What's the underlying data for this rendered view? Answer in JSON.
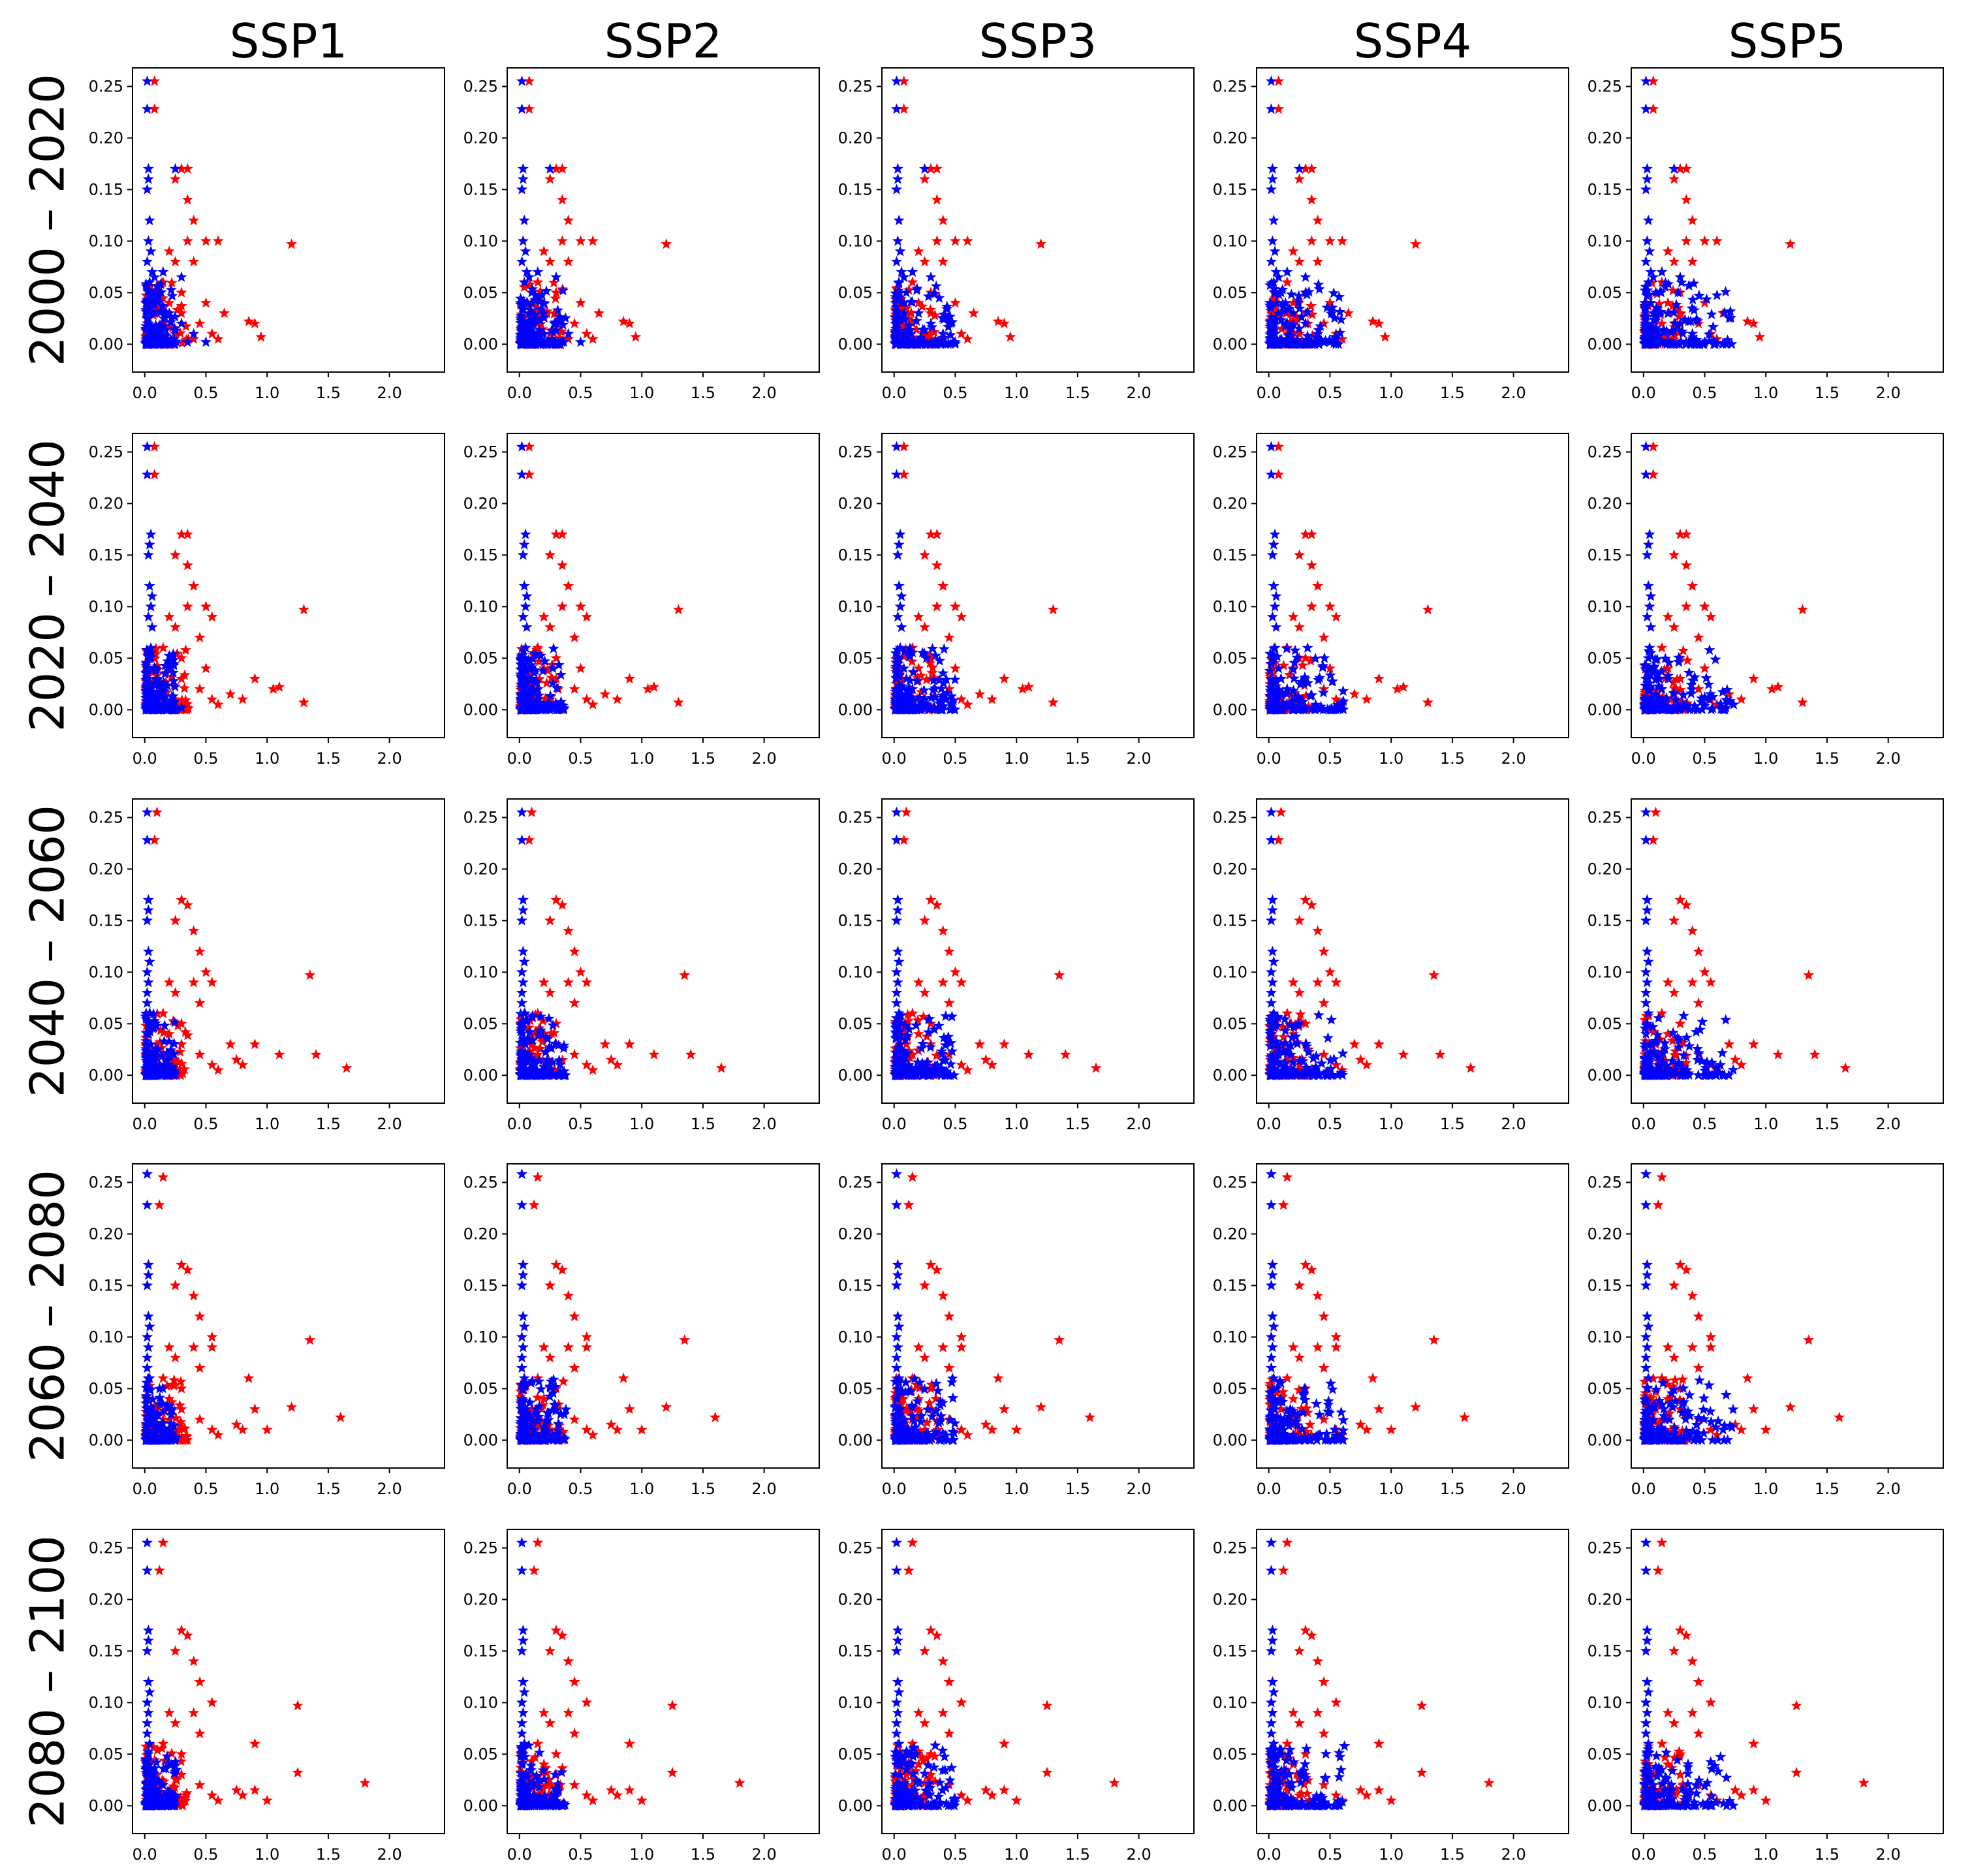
{
  "chart_data": {
    "type": "scatter",
    "layout": "grid 5x5",
    "column_titles": [
      "SSP1",
      "SSP2",
      "SSP3",
      "SSP4",
      "SSP5"
    ],
    "row_labels": [
      "2000 – 2020",
      "2020 – 2040",
      "2040 – 2060",
      "2060 – 2080",
      "2080 – 2100"
    ],
    "xlim": [
      -0.1,
      2.45
    ],
    "ylim": [
      -0.027,
      0.268
    ],
    "xticks": [
      0.0,
      0.5,
      1.0,
      1.5,
      2.0
    ],
    "xtick_labels": [
      "0.0",
      "0.5",
      "1.0",
      "1.5",
      "2.0"
    ],
    "yticks": [
      0.0,
      0.05,
      0.1,
      0.15,
      0.2,
      0.25
    ],
    "ytick_labels": [
      "0.00",
      "0.05",
      "0.10",
      "0.15",
      "0.20",
      "0.25"
    ],
    "marker": "star",
    "series_colors": {
      "blue": "#0000ff",
      "red": "#ff0000"
    },
    "series": [
      {
        "name": "blue",
        "color": "#0000ff",
        "values_by_row": [
          [
            [
              0.02,
              0.255
            ],
            [
              0.02,
              0.228
            ],
            [
              0.03,
              0.17
            ],
            [
              0.03,
              0.16
            ],
            [
              0.02,
              0.15
            ],
            [
              0.04,
              0.12
            ],
            [
              0.03,
              0.1
            ],
            [
              0.05,
              0.09
            ],
            [
              0.02,
              0.08
            ],
            [
              0.06,
              0.07
            ],
            [
              0.08,
              0.065
            ],
            [
              0.15,
              0.07
            ],
            [
              0.3,
              0.065
            ],
            [
              0.04,
              0.06
            ],
            [
              0.1,
              0.05
            ],
            [
              0.06,
              0.04
            ],
            [
              0.2,
              0.03
            ],
            [
              0.3,
              0.02
            ],
            [
              0.4,
              0.01
            ],
            [
              0.03,
              0.02
            ],
            [
              0.05,
              0.01
            ],
            [
              0.1,
              0.005
            ],
            [
              0.2,
              0.002
            ],
            [
              0.35,
              0.002
            ],
            [
              0.5,
              0.002
            ],
            [
              0.25,
              0.17
            ],
            [
              0.01,
              0.04
            ],
            [
              0.08,
              0.03
            ]
          ],
          [
            [
              0.02,
              0.255
            ],
            [
              0.02,
              0.228
            ],
            [
              0.05,
              0.17
            ],
            [
              0.04,
              0.16
            ],
            [
              0.03,
              0.15
            ],
            [
              0.04,
              0.12
            ],
            [
              0.05,
              0.1
            ],
            [
              0.03,
              0.09
            ],
            [
              0.06,
              0.08
            ],
            [
              0.05,
              0.06
            ],
            [
              0.04,
              0.05
            ],
            [
              0.08,
              0.04
            ],
            [
              0.1,
              0.03
            ],
            [
              0.15,
              0.02
            ],
            [
              0.05,
              0.02
            ],
            [
              0.07,
              0.01
            ],
            [
              0.12,
              0.005
            ],
            [
              0.2,
              0.002
            ],
            [
              0.3,
              0.002
            ],
            [
              0.02,
              0.03
            ],
            [
              0.03,
              0.005
            ],
            [
              0.1,
              0.015
            ],
            [
              0.06,
              0.11
            ]
          ],
          [
            [
              0.02,
              0.255
            ],
            [
              0.02,
              0.228
            ],
            [
              0.03,
              0.17
            ],
            [
              0.03,
              0.16
            ],
            [
              0.02,
              0.15
            ],
            [
              0.03,
              0.12
            ],
            [
              0.02,
              0.1
            ],
            [
              0.03,
              0.09
            ],
            [
              0.02,
              0.08
            ],
            [
              0.04,
              0.06
            ],
            [
              0.03,
              0.05
            ],
            [
              0.02,
              0.04
            ],
            [
              0.05,
              0.03
            ],
            [
              0.08,
              0.02
            ],
            [
              0.12,
              0.01
            ],
            [
              0.2,
              0.005
            ],
            [
              0.03,
              0.005
            ],
            [
              0.06,
              0.002
            ],
            [
              0.15,
              0.002
            ],
            [
              0.04,
              0.11
            ],
            [
              0.02,
              0.07
            ],
            [
              0.05,
              0.015
            ]
          ],
          [
            [
              0.02,
              0.258
            ],
            [
              0.02,
              0.228
            ],
            [
              0.03,
              0.17
            ],
            [
              0.03,
              0.16
            ],
            [
              0.02,
              0.15
            ],
            [
              0.03,
              0.12
            ],
            [
              0.02,
              0.1
            ],
            [
              0.03,
              0.09
            ],
            [
              0.02,
              0.08
            ],
            [
              0.04,
              0.06
            ],
            [
              0.03,
              0.05
            ],
            [
              0.02,
              0.04
            ],
            [
              0.05,
              0.03
            ],
            [
              0.08,
              0.02
            ],
            [
              0.12,
              0.01
            ],
            [
              0.2,
              0.005
            ],
            [
              0.03,
              0.005
            ],
            [
              0.06,
              0.002
            ],
            [
              0.15,
              0.002
            ],
            [
              0.04,
              0.11
            ],
            [
              0.02,
              0.07
            ],
            [
              0.05,
              0.015
            ]
          ],
          [
            [
              0.02,
              0.255
            ],
            [
              0.02,
              0.228
            ],
            [
              0.03,
              0.17
            ],
            [
              0.03,
              0.16
            ],
            [
              0.02,
              0.15
            ],
            [
              0.03,
              0.12
            ],
            [
              0.02,
              0.1
            ],
            [
              0.03,
              0.09
            ],
            [
              0.02,
              0.08
            ],
            [
              0.04,
              0.06
            ],
            [
              0.03,
              0.05
            ],
            [
              0.02,
              0.04
            ],
            [
              0.05,
              0.03
            ],
            [
              0.08,
              0.02
            ],
            [
              0.12,
              0.01
            ],
            [
              0.2,
              0.005
            ],
            [
              0.03,
              0.005
            ],
            [
              0.06,
              0.002
            ],
            [
              0.15,
              0.002
            ],
            [
              0.04,
              0.11
            ],
            [
              0.02,
              0.07
            ],
            [
              0.05,
              0.015
            ]
          ]
        ]
      },
      {
        "name": "red",
        "color": "#ff0000",
        "values_by_row": [
          [
            [
              0.08,
              0.255
            ],
            [
              0.08,
              0.228
            ],
            [
              0.3,
              0.17
            ],
            [
              0.35,
              0.17
            ],
            [
              0.25,
              0.16
            ],
            [
              0.35,
              0.14
            ],
            [
              0.4,
              0.12
            ],
            [
              0.5,
              0.1
            ],
            [
              0.35,
              0.1
            ],
            [
              0.6,
              0.1
            ],
            [
              1.2,
              0.097
            ],
            [
              0.2,
              0.09
            ],
            [
              0.25,
              0.08
            ],
            [
              0.4,
              0.08
            ],
            [
              0.15,
              0.06
            ],
            [
              0.3,
              0.05
            ],
            [
              0.5,
              0.04
            ],
            [
              0.65,
              0.03
            ],
            [
              0.3,
              0.03
            ],
            [
              0.45,
              0.02
            ],
            [
              0.85,
              0.022
            ],
            [
              0.9,
              0.02
            ],
            [
              0.95,
              0.007
            ],
            [
              0.55,
              0.01
            ],
            [
              0.6,
              0.005
            ],
            [
              0.4,
              0.005
            ],
            [
              0.25,
              0.01
            ],
            [
              0.15,
              0.02
            ],
            [
              0.1,
              0.03
            ],
            [
              0.2,
              0.04
            ]
          ],
          [
            [
              0.08,
              0.255
            ],
            [
              0.08,
              0.228
            ],
            [
              0.3,
              0.17
            ],
            [
              0.35,
              0.17
            ],
            [
              0.25,
              0.15
            ],
            [
              0.35,
              0.14
            ],
            [
              0.4,
              0.12
            ],
            [
              0.5,
              0.1
            ],
            [
              0.35,
              0.1
            ],
            [
              0.55,
              0.09
            ],
            [
              1.3,
              0.097
            ],
            [
              0.2,
              0.09
            ],
            [
              0.25,
              0.08
            ],
            [
              0.45,
              0.07
            ],
            [
              0.15,
              0.06
            ],
            [
              0.3,
              0.05
            ],
            [
              0.5,
              0.04
            ],
            [
              0.9,
              0.03
            ],
            [
              0.3,
              0.03
            ],
            [
              0.45,
              0.02
            ],
            [
              1.05,
              0.02
            ],
            [
              1.1,
              0.022
            ],
            [
              1.3,
              0.007
            ],
            [
              0.55,
              0.01
            ],
            [
              0.6,
              0.005
            ],
            [
              0.7,
              0.015
            ],
            [
              0.25,
              0.01
            ],
            [
              0.15,
              0.02
            ],
            [
              0.1,
              0.03
            ],
            [
              0.2,
              0.04
            ],
            [
              0.8,
              0.01
            ]
          ],
          [
            [
              0.1,
              0.255
            ],
            [
              0.08,
              0.228
            ],
            [
              0.3,
              0.17
            ],
            [
              0.35,
              0.165
            ],
            [
              0.25,
              0.15
            ],
            [
              0.4,
              0.14
            ],
            [
              0.45,
              0.12
            ],
            [
              0.5,
              0.1
            ],
            [
              0.4,
              0.09
            ],
            [
              0.55,
              0.09
            ],
            [
              1.35,
              0.097
            ],
            [
              0.2,
              0.09
            ],
            [
              0.25,
              0.08
            ],
            [
              0.45,
              0.07
            ],
            [
              0.15,
              0.06
            ],
            [
              0.3,
              0.05
            ],
            [
              0.7,
              0.03
            ],
            [
              0.9,
              0.03
            ],
            [
              0.3,
              0.03
            ],
            [
              0.45,
              0.02
            ],
            [
              1.1,
              0.02
            ],
            [
              1.4,
              0.02
            ],
            [
              1.65,
              0.007
            ],
            [
              0.55,
              0.01
            ],
            [
              0.6,
              0.005
            ],
            [
              0.75,
              0.015
            ],
            [
              0.25,
              0.01
            ],
            [
              0.15,
              0.02
            ],
            [
              0.1,
              0.03
            ],
            [
              0.2,
              0.04
            ],
            [
              0.8,
              0.01
            ]
          ],
          [
            [
              0.15,
              0.255
            ],
            [
              0.12,
              0.228
            ],
            [
              0.3,
              0.17
            ],
            [
              0.35,
              0.165
            ],
            [
              0.25,
              0.15
            ],
            [
              0.4,
              0.14
            ],
            [
              0.45,
              0.12
            ],
            [
              0.55,
              0.1
            ],
            [
              0.4,
              0.09
            ],
            [
              0.55,
              0.09
            ],
            [
              1.35,
              0.097
            ],
            [
              0.2,
              0.09
            ],
            [
              0.25,
              0.08
            ],
            [
              0.45,
              0.07
            ],
            [
              0.15,
              0.06
            ],
            [
              0.3,
              0.05
            ],
            [
              0.85,
              0.06
            ],
            [
              0.9,
              0.03
            ],
            [
              0.3,
              0.03
            ],
            [
              0.45,
              0.02
            ],
            [
              1.2,
              0.032
            ],
            [
              1.6,
              0.022
            ],
            [
              1.0,
              0.01
            ],
            [
              0.55,
              0.01
            ],
            [
              0.6,
              0.005
            ],
            [
              0.75,
              0.015
            ],
            [
              0.25,
              0.01
            ],
            [
              0.15,
              0.02
            ],
            [
              0.1,
              0.03
            ],
            [
              0.2,
              0.04
            ],
            [
              0.8,
              0.01
            ]
          ],
          [
            [
              0.15,
              0.255
            ],
            [
              0.12,
              0.228
            ],
            [
              0.3,
              0.17
            ],
            [
              0.35,
              0.165
            ],
            [
              0.25,
              0.15
            ],
            [
              0.4,
              0.14
            ],
            [
              0.45,
              0.12
            ],
            [
              0.55,
              0.1
            ],
            [
              0.4,
              0.09
            ],
            [
              1.25,
              0.097
            ],
            [
              0.2,
              0.09
            ],
            [
              0.25,
              0.08
            ],
            [
              0.45,
              0.07
            ],
            [
              0.15,
              0.06
            ],
            [
              0.3,
              0.05
            ],
            [
              0.9,
              0.06
            ],
            [
              0.9,
              0.015
            ],
            [
              0.3,
              0.03
            ],
            [
              0.45,
              0.02
            ],
            [
              1.25,
              0.032
            ],
            [
              1.8,
              0.022
            ],
            [
              1.0,
              0.005
            ],
            [
              0.55,
              0.01
            ],
            [
              0.6,
              0.005
            ],
            [
              0.75,
              0.015
            ],
            [
              0.25,
              0.01
            ],
            [
              0.15,
              0.02
            ],
            [
              0.1,
              0.03
            ],
            [
              0.2,
              0.04
            ],
            [
              0.8,
              0.01
            ]
          ]
        ]
      }
    ],
    "title": "",
    "xlabel": "",
    "ylabel": "",
    "grid": false,
    "legend": "none"
  }
}
